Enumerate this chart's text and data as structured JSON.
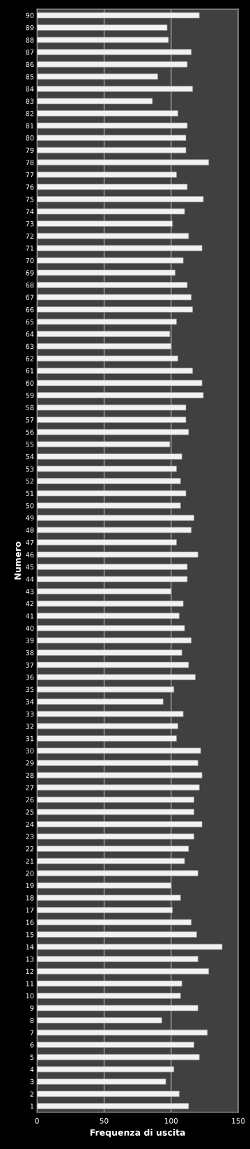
{
  "chart_data": {
    "type": "bar",
    "orientation": "horizontal",
    "xlabel": "Frequenza di uscita",
    "ylabel": "Numero",
    "categories": [
      "90",
      "89",
      "88",
      "87",
      "86",
      "85",
      "84",
      "83",
      "82",
      "81",
      "80",
      "79",
      "78",
      "77",
      "76",
      "75",
      "74",
      "73",
      "72",
      "71",
      "70",
      "69",
      "68",
      "67",
      "66",
      "65",
      "64",
      "63",
      "62",
      "61",
      "60",
      "59",
      "58",
      "57",
      "56",
      "55",
      "54",
      "53",
      "52",
      "51",
      "50",
      "49",
      "48",
      "47",
      "46",
      "45",
      "44",
      "43",
      "42",
      "41",
      "40",
      "39",
      "38",
      "37",
      "36",
      "35",
      "34",
      "33",
      "32",
      "31",
      "30",
      "29",
      "28",
      "27",
      "26",
      "25",
      "24",
      "23",
      "22",
      "21",
      "20",
      "19",
      "18",
      "17",
      "16",
      "15",
      "14",
      "13",
      "12",
      "11",
      "10",
      "9",
      "8",
      "7",
      "6",
      "5",
      "4",
      "3",
      "2",
      "1"
    ],
    "values": [
      121,
      97,
      98,
      115,
      112,
      90,
      116,
      86,
      105,
      112,
      111,
      111,
      128,
      104,
      112,
      124,
      110,
      101,
      113,
      123,
      109,
      103,
      112,
      115,
      116,
      104,
      99,
      100,
      105,
      116,
      123,
      124,
      111,
      111,
      113,
      99,
      108,
      104,
      107,
      111,
      107,
      117,
      115,
      104,
      120,
      112,
      112,
      100,
      109,
      106,
      110,
      115,
      108,
      113,
      118,
      102,
      94,
      109,
      105,
      104,
      122,
      120,
      123,
      121,
      117,
      117,
      123,
      117,
      113,
      110,
      120,
      100,
      107,
      101,
      115,
      119,
      138,
      120,
      128,
      108,
      107,
      120,
      93,
      127,
      117,
      121,
      102,
      96,
      106,
      113
    ],
    "color": "#f2f2f2",
    "xlim": [
      0,
      150
    ],
    "xticks": [
      0,
      50,
      100,
      150
    ],
    "grid": "x"
  }
}
